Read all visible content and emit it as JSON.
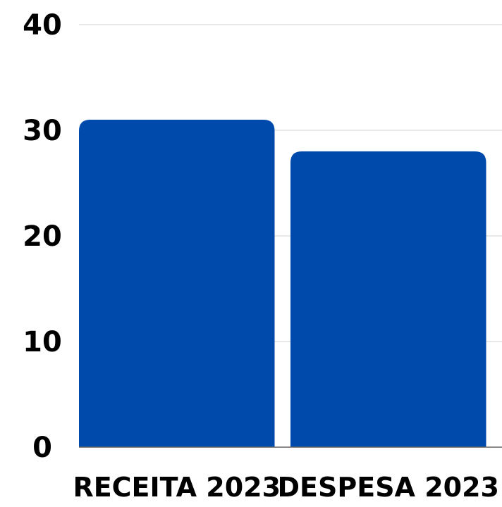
{
  "chart_data": {
    "type": "bar",
    "categories": [
      "RECEITA 2023",
      "DESPESA 2023"
    ],
    "values": [
      31,
      28
    ],
    "yticks": [
      "0",
      "10",
      "20",
      "30",
      "40"
    ],
    "ylim": [
      0,
      40
    ],
    "grid": true,
    "legend": "none",
    "title": "",
    "xlabel": "",
    "ylabel": "",
    "colors": {
      "bar": "#004aab",
      "grid": "#d9d9d9",
      "axis": "#666666"
    }
  }
}
